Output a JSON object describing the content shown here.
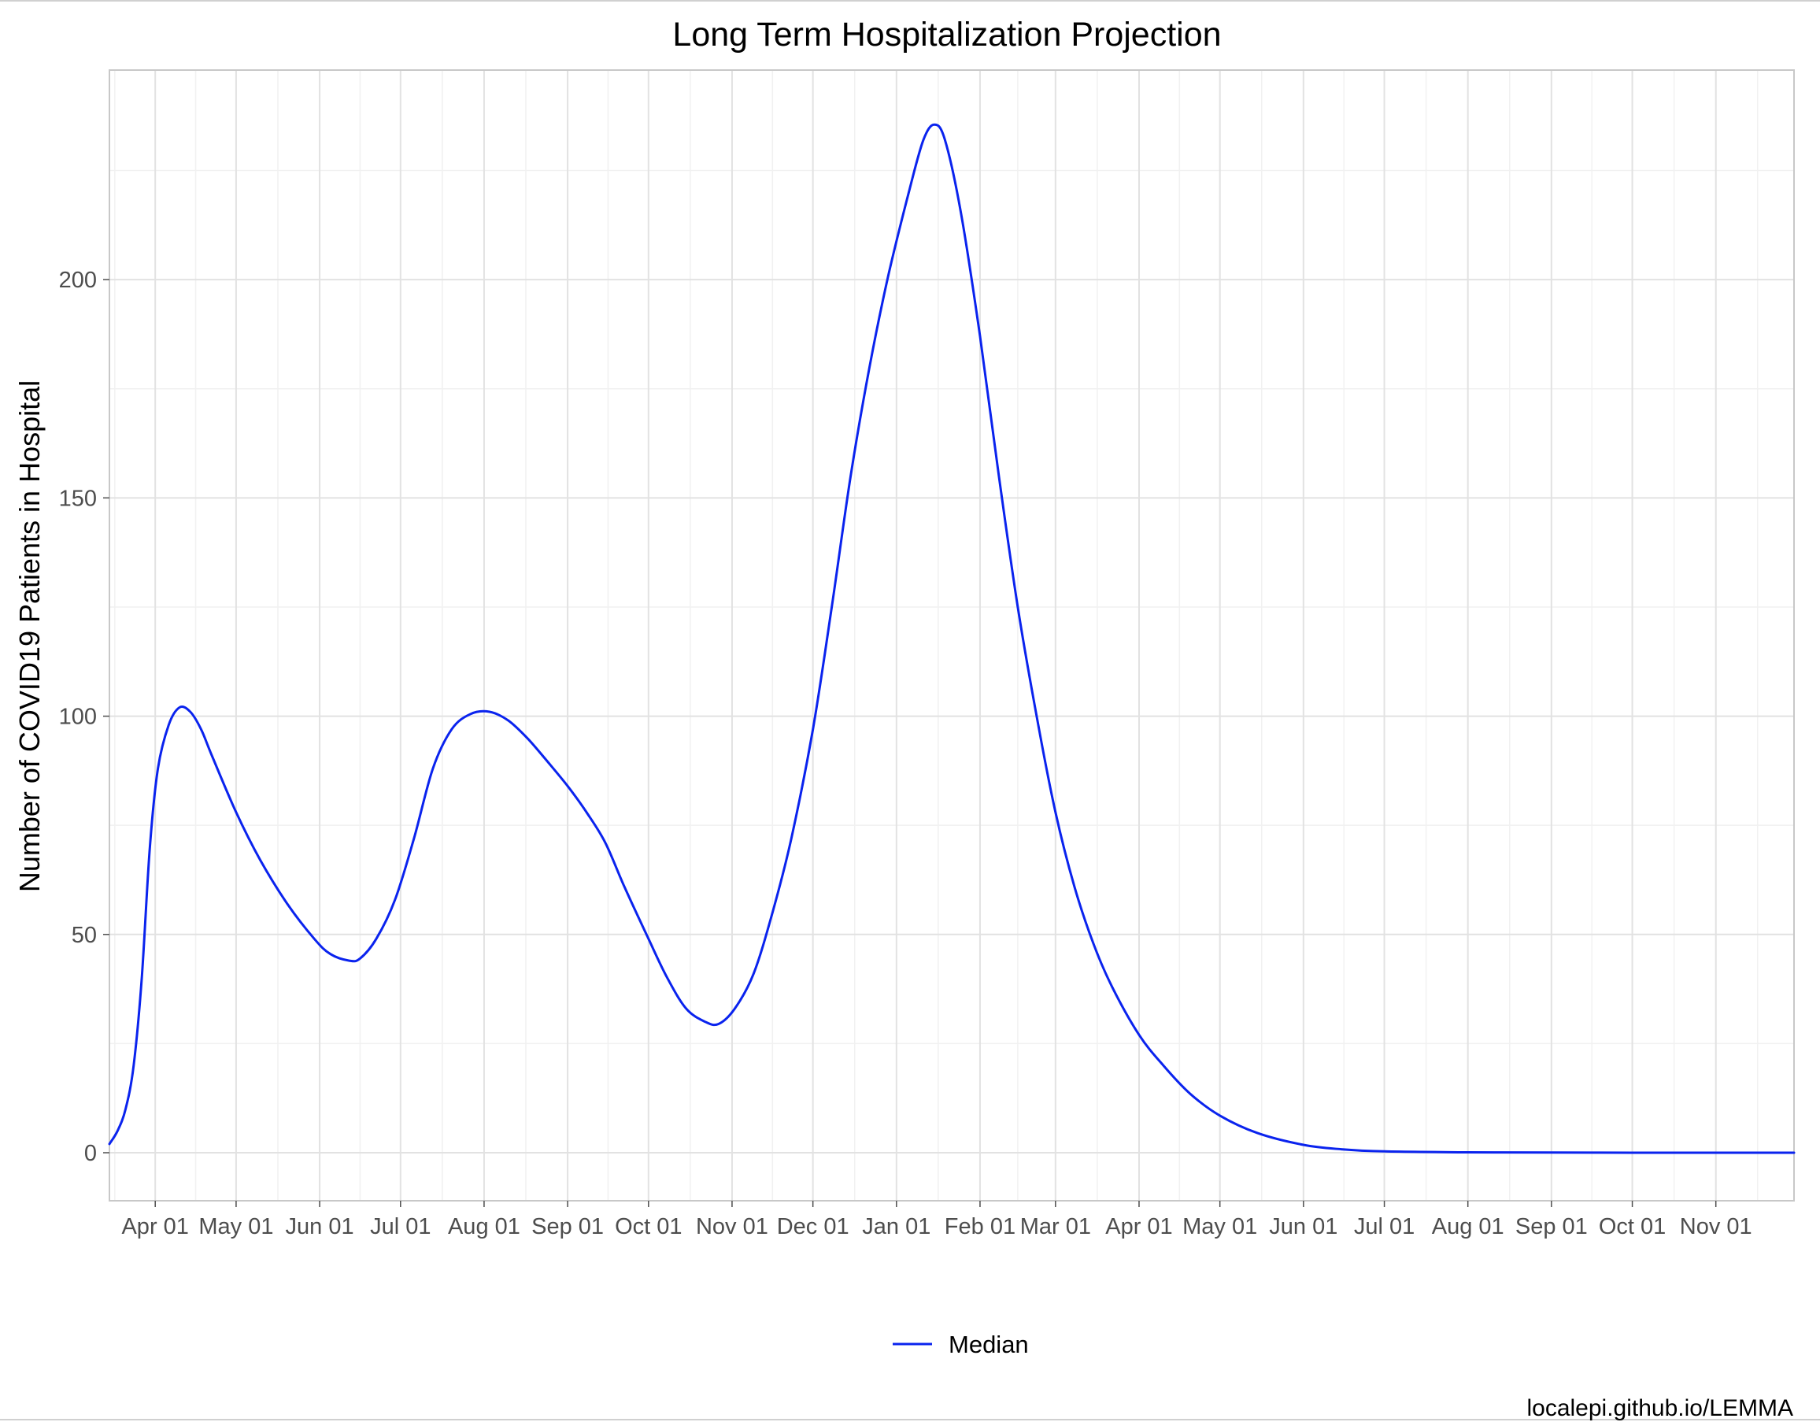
{
  "chart_data": {
    "type": "line",
    "title": "Long Term Hospitalization Projection",
    "xlabel": "",
    "ylabel": "Number of COVID19 Patients in Hospital",
    "caption": "localepi.github.io/LEMMA",
    "xlim": [
      "2020-03-15",
      "2021-11-30"
    ],
    "ylim": [
      -11,
      248
    ],
    "x_ticks": [
      {
        "date": "2020-04-01",
        "label": "Apr 01"
      },
      {
        "date": "2020-05-01",
        "label": "May 01"
      },
      {
        "date": "2020-06-01",
        "label": "Jun 01"
      },
      {
        "date": "2020-07-01",
        "label": "Jul 01"
      },
      {
        "date": "2020-08-01",
        "label": "Aug 01"
      },
      {
        "date": "2020-09-01",
        "label": "Sep 01"
      },
      {
        "date": "2020-10-01",
        "label": "Oct 01"
      },
      {
        "date": "2020-11-01",
        "label": "Nov 01"
      },
      {
        "date": "2020-12-01",
        "label": "Dec 01"
      },
      {
        "date": "2021-01-01",
        "label": "Jan 01"
      },
      {
        "date": "2021-02-01",
        "label": "Feb 01"
      },
      {
        "date": "2021-03-01",
        "label": "Mar 01"
      },
      {
        "date": "2021-04-01",
        "label": "Apr 01"
      },
      {
        "date": "2021-05-01",
        "label": "May 01"
      },
      {
        "date": "2021-06-01",
        "label": "Jun 01"
      },
      {
        "date": "2021-07-01",
        "label": "Jul 01"
      },
      {
        "date": "2021-08-01",
        "label": "Aug 01"
      },
      {
        "date": "2021-09-01",
        "label": "Sep 01"
      },
      {
        "date": "2021-10-01",
        "label": "Oct 01"
      },
      {
        "date": "2021-11-01",
        "label": "Nov 01"
      }
    ],
    "y_ticks": [
      0,
      50,
      100,
      150,
      200
    ],
    "grid": true,
    "legend": {
      "position": "bottom"
    },
    "series": [
      {
        "name": "Median",
        "color": "#0a23ee",
        "points": [
          [
            "2020-03-15",
            2
          ],
          [
            "2020-03-18",
            5
          ],
          [
            "2020-03-21",
            10
          ],
          [
            "2020-03-24",
            20
          ],
          [
            "2020-03-27",
            40
          ],
          [
            "2020-03-30",
            70
          ],
          [
            "2020-04-02",
            88
          ],
          [
            "2020-04-06",
            98
          ],
          [
            "2020-04-10",
            102
          ],
          [
            "2020-04-14",
            101
          ],
          [
            "2020-04-18",
            97
          ],
          [
            "2020-04-22",
            91
          ],
          [
            "2020-05-01",
            78
          ],
          [
            "2020-05-10",
            67
          ],
          [
            "2020-05-20",
            57
          ],
          [
            "2020-05-30",
            49
          ],
          [
            "2020-06-05",
            45.5
          ],
          [
            "2020-06-12",
            44
          ],
          [
            "2020-06-16",
            44.5
          ],
          [
            "2020-06-22",
            49
          ],
          [
            "2020-06-29",
            58
          ],
          [
            "2020-07-06",
            72
          ],
          [
            "2020-07-13",
            88
          ],
          [
            "2020-07-20",
            97
          ],
          [
            "2020-07-27",
            100.5
          ],
          [
            "2020-08-03",
            101
          ],
          [
            "2020-08-10",
            99
          ],
          [
            "2020-08-17",
            95
          ],
          [
            "2020-08-24",
            90
          ],
          [
            "2020-09-01",
            84
          ],
          [
            "2020-09-08",
            78
          ],
          [
            "2020-09-15",
            71
          ],
          [
            "2020-09-22",
            61
          ],
          [
            "2020-10-01",
            49
          ],
          [
            "2020-10-08",
            40
          ],
          [
            "2020-10-15",
            33
          ],
          [
            "2020-10-22",
            30
          ],
          [
            "2020-10-27",
            29.5
          ],
          [
            "2020-11-02",
            33
          ],
          [
            "2020-11-09",
            41
          ],
          [
            "2020-11-16",
            55
          ],
          [
            "2020-11-23",
            72
          ],
          [
            "2020-12-01",
            97
          ],
          [
            "2020-12-08",
            125
          ],
          [
            "2020-12-15",
            155
          ],
          [
            "2020-12-22",
            180
          ],
          [
            "2020-12-29",
            201
          ],
          [
            "2021-01-06",
            221
          ],
          [
            "2021-01-11",
            232
          ],
          [
            "2021-01-15",
            235.5
          ],
          [
            "2021-01-19",
            232
          ],
          [
            "2021-01-25",
            215
          ],
          [
            "2021-02-01",
            187
          ],
          [
            "2021-02-08",
            155
          ],
          [
            "2021-02-15",
            125
          ],
          [
            "2021-02-22",
            100
          ],
          [
            "2021-03-01",
            78
          ],
          [
            "2021-03-08",
            61
          ],
          [
            "2021-03-15",
            48
          ],
          [
            "2021-03-22",
            38
          ],
          [
            "2021-04-01",
            27
          ],
          [
            "2021-04-10",
            20
          ],
          [
            "2021-04-20",
            13.5
          ],
          [
            "2021-05-01",
            8.5
          ],
          [
            "2021-05-15",
            4.5
          ],
          [
            "2021-06-01",
            1.8
          ],
          [
            "2021-06-15",
            0.8
          ],
          [
            "2021-07-01",
            0.3
          ],
          [
            "2021-08-01",
            0.1
          ],
          [
            "2021-09-01",
            0.05
          ],
          [
            "2021-10-01",
            0
          ],
          [
            "2021-11-01",
            0
          ],
          [
            "2021-11-30",
            0
          ]
        ]
      }
    ]
  }
}
